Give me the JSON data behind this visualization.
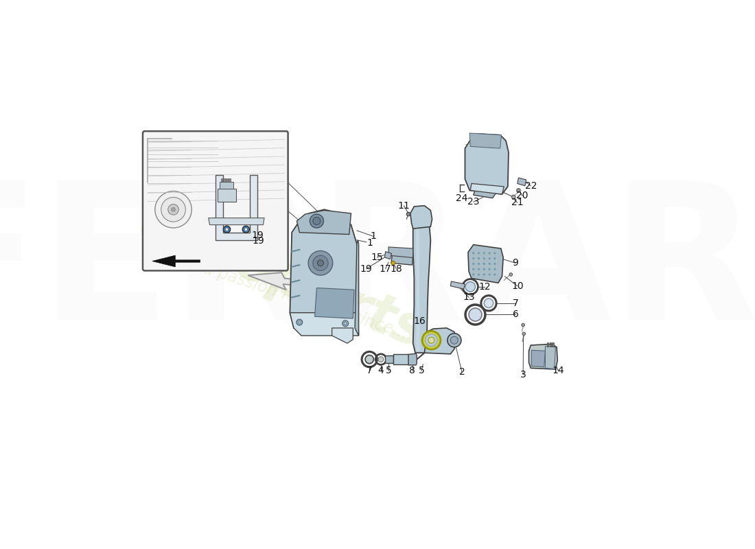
{
  "bg_color": "#ffffff",
  "part_color": "#b8cdd8",
  "part_color2": "#a8bdc8",
  "part_dark": "#7a9aaa",
  "part_light": "#d0e0e8",
  "outline": "#404040",
  "outline2": "#555555",
  "label_fs": 10,
  "wm_color": "#c8d890",
  "wm_alpha": 0.28,
  "line_color": "#555555",
  "inset_bg": "#f5f5f5",
  "inset_line": "#888888",
  "sketch_line": "#666666"
}
